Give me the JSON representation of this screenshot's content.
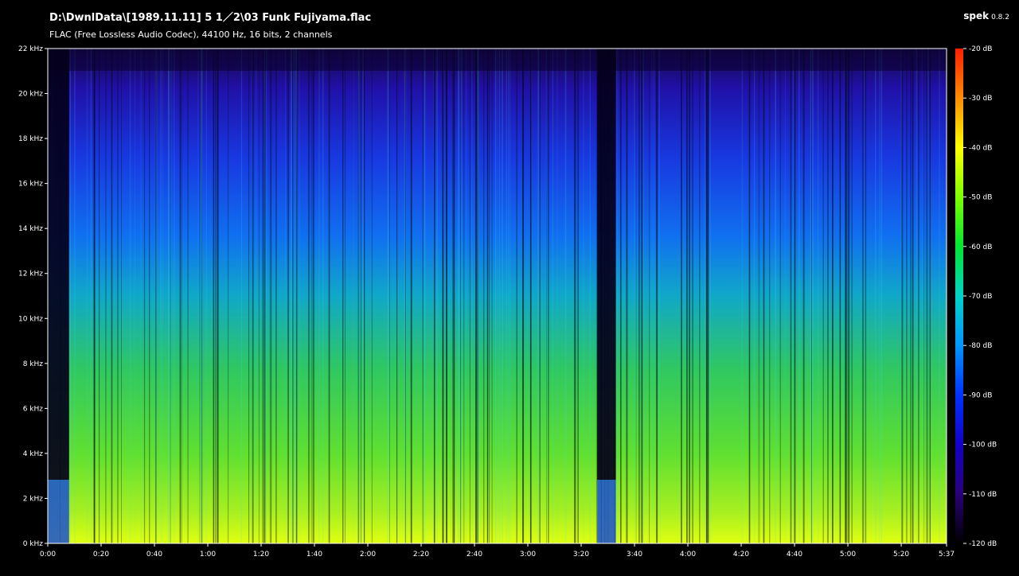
{
  "header": {
    "file_path": "D:\\DwnlData\\[1989.11.11] 5 1／2\\03 Funk Fujiyama.flac",
    "file_info": "FLAC (Free Lossless Audio Codec), 44100 Hz, 16 bits, 2 channels",
    "app_name": "spek",
    "app_version": "0.8.2"
  },
  "chart_data": {
    "type": "heatmap",
    "title": "D:\\DwnlData\\[1989.11.11] 5 1／2\\03 Funk Fujiyama.flac",
    "subtitle": "FLAC (Free Lossless Audio Codec), 44100 Hz, 16 bits, 2 channels",
    "xlabel": "",
    "ylabel": "",
    "x_range_seconds": [
      0,
      337
    ],
    "y_range_khz": [
      0,
      22
    ],
    "color_range_db": [
      -120,
      -20
    ],
    "x_ticks": [
      "0:00",
      "0:20",
      "0:40",
      "1:00",
      "1:20",
      "1:40",
      "2:00",
      "2:20",
      "2:40",
      "3:00",
      "3:20",
      "3:40",
      "4:00",
      "4:20",
      "4:40",
      "5:00",
      "5:20",
      "5:37"
    ],
    "y_ticks": [
      "0 kHz",
      "2 kHz",
      "4 kHz",
      "6 kHz",
      "8 kHz",
      "10 kHz",
      "12 kHz",
      "14 kHz",
      "16 kHz",
      "18 kHz",
      "20 kHz",
      "22 kHz"
    ],
    "legend_ticks": [
      "-20 dB",
      "-30 dB",
      "-40 dB",
      "-50 dB",
      "-60 dB",
      "-70 dB",
      "-80 dB",
      "-90 dB",
      "-100 dB",
      "-110 dB",
      "-120 dB"
    ],
    "legend_placement": "right",
    "grid": false,
    "colormap": [
      "#ff1e00",
      "#ff8c00",
      "#ffff00",
      "#7dff00",
      "#00e632",
      "#00d2c8",
      "#0096ff",
      "#0032ff",
      "#1400c8",
      "#2a0078",
      "#000000"
    ],
    "silent_segments_seconds": [
      [
        0,
        8
      ],
      [
        206,
        213
      ]
    ]
  }
}
